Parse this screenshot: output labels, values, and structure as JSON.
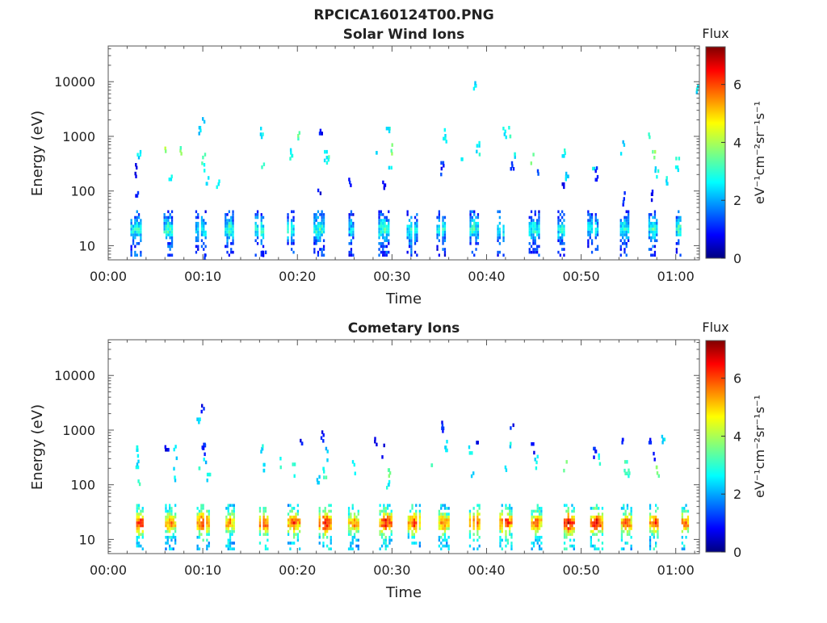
{
  "figure": {
    "title": "RPCICA160124T00.PNG"
  },
  "chart_data": [
    {
      "type": "heatmap",
      "title": "Solar Wind Ions",
      "xlabel": "Time",
      "ylabel": "Energy (eV)",
      "x_ticks": [
        "00:00",
        "00:10",
        "00:20",
        "00:30",
        "00:40",
        "00:50",
        "01:00"
      ],
      "x_tick_minutes": [
        0,
        10,
        20,
        30,
        40,
        50,
        60
      ],
      "xlim_minutes": [
        0,
        62.5
      ],
      "y_scale": "log",
      "ylim": [
        5.5,
        45000
      ],
      "y_ticks": [
        "10",
        "100",
        "1000",
        "10000"
      ],
      "y_tick_values": [
        10,
        100,
        1000,
        10000
      ],
      "colorbar": {
        "title": "Flux",
        "label": "eV⁻¹cm⁻²sr⁻¹s⁻¹",
        "range": [
          0,
          7.3
        ],
        "ticks": [
          "0",
          "2",
          "4",
          "6"
        ],
        "tick_values": [
          0,
          2,
          4,
          6
        ],
        "colormap": "jet"
      },
      "bursts": [
        {
          "t": 2.9,
          "w": 1.1,
          "v": 2.8
        },
        {
          "t": 6.3,
          "w": 0.9,
          "v": 2.9
        },
        {
          "t": 9.8,
          "w": 1.2,
          "v": 2.7
        },
        {
          "t": 12.8,
          "w": 1.0,
          "v": 2.8
        },
        {
          "t": 16.0,
          "w": 1.0,
          "v": 2.9
        },
        {
          "t": 19.2,
          "w": 1.0,
          "v": 2.7
        },
        {
          "t": 22.3,
          "w": 1.2,
          "v": 2.9
        },
        {
          "t": 25.7,
          "w": 0.6,
          "v": 2.4
        },
        {
          "t": 29.1,
          "w": 1.1,
          "v": 2.9
        },
        {
          "t": 32.1,
          "w": 1.1,
          "v": 2.8
        },
        {
          "t": 35.2,
          "w": 1.0,
          "v": 2.7
        },
        {
          "t": 38.7,
          "w": 1.0,
          "v": 2.8
        },
        {
          "t": 41.6,
          "w": 1.0,
          "v": 2.9
        },
        {
          "t": 45.0,
          "w": 1.1,
          "v": 2.8
        },
        {
          "t": 48.0,
          "w": 1.0,
          "v": 2.7
        },
        {
          "t": 51.2,
          "w": 1.1,
          "v": 2.6
        },
        {
          "t": 54.6,
          "w": 1.0,
          "v": 2.7
        },
        {
          "t": 57.6,
          "w": 1.0,
          "v": 2.8
        },
        {
          "t": 60.4,
          "w": 0.8,
          "v": 2.9
        }
      ],
      "scatter": [
        {
          "t": 2.8,
          "e": 230,
          "v": 0.9
        },
        {
          "t": 3.2,
          "e": 450,
          "v": 2.6
        },
        {
          "t": 3.0,
          "e": 90,
          "v": 1.2
        },
        {
          "t": 6.0,
          "e": 520,
          "v": 4.0
        },
        {
          "t": 6.5,
          "e": 180,
          "v": 2.8
        },
        {
          "t": 7.6,
          "e": 600,
          "v": 3.6
        },
        {
          "t": 9.5,
          "e": 1100,
          "v": 2.4
        },
        {
          "t": 9.9,
          "e": 2300,
          "v": 2.6
        },
        {
          "t": 10.0,
          "e": 400,
          "v": 3.4
        },
        {
          "t": 10.2,
          "e": 260,
          "v": 3.0
        },
        {
          "t": 10.4,
          "e": 150,
          "v": 2.5
        },
        {
          "t": 10.1,
          "e": 6.5,
          "v": 1.0
        },
        {
          "t": 11.5,
          "e": 130,
          "v": 2.7
        },
        {
          "t": 16.1,
          "e": 1200,
          "v": 2.6
        },
        {
          "t": 16.2,
          "e": 300,
          "v": 3.2
        },
        {
          "t": 16.4,
          "e": 6.5,
          "v": 1.1
        },
        {
          "t": 19.3,
          "e": 430,
          "v": 2.8
        },
        {
          "t": 20.1,
          "e": 1000,
          "v": 3.4
        },
        {
          "t": 22.4,
          "e": 1100,
          "v": 1.0
        },
        {
          "t": 22.9,
          "e": 450,
          "v": 2.6
        },
        {
          "t": 23.1,
          "e": 320,
          "v": 3.0
        },
        {
          "t": 22.2,
          "e": 100,
          "v": 0.8
        },
        {
          "t": 25.5,
          "e": 140,
          "v": 1.0
        },
        {
          "t": 28.2,
          "e": 550,
          "v": 2.6
        },
        {
          "t": 29.5,
          "e": 1200,
          "v": 2.8
        },
        {
          "t": 29.7,
          "e": 230,
          "v": 2.7
        },
        {
          "t": 29.1,
          "e": 110,
          "v": 0.9
        },
        {
          "t": 30.0,
          "e": 600,
          "v": 3.5
        },
        {
          "t": 35.5,
          "e": 1000,
          "v": 2.6
        },
        {
          "t": 35.2,
          "e": 250,
          "v": 1.2
        },
        {
          "t": 37.2,
          "e": 420,
          "v": 2.8
        },
        {
          "t": 38.6,
          "e": 8200,
          "v": 2.6
        },
        {
          "t": 39.0,
          "e": 580,
          "v": 2.7
        },
        {
          "t": 41.8,
          "e": 1200,
          "v": 2.6
        },
        {
          "t": 42.4,
          "e": 1100,
          "v": 3.0
        },
        {
          "t": 42.6,
          "e": 280,
          "v": 1.1
        },
        {
          "t": 42.9,
          "e": 520,
          "v": 2.7
        },
        {
          "t": 44.7,
          "e": 400,
          "v": 3.3
        },
        {
          "t": 45.3,
          "e": 200,
          "v": 1.3
        },
        {
          "t": 48.0,
          "e": 130,
          "v": 1.0
        },
        {
          "t": 48.4,
          "e": 180,
          "v": 2.6
        },
        {
          "t": 48.1,
          "e": 480,
          "v": 2.8
        },
        {
          "t": 51.2,
          "e": 250,
          "v": 2.7
        },
        {
          "t": 51.6,
          "e": 200,
          "v": 1.0
        },
        {
          "t": 54.3,
          "e": 600,
          "v": 2.6
        },
        {
          "t": 54.5,
          "e": 70,
          "v": 1.1
        },
        {
          "t": 57.2,
          "e": 1200,
          "v": 2.9
        },
        {
          "t": 57.6,
          "e": 450,
          "v": 3.6
        },
        {
          "t": 57.9,
          "e": 200,
          "v": 2.7
        },
        {
          "t": 57.5,
          "e": 85,
          "v": 0.8
        },
        {
          "t": 59.0,
          "e": 150,
          "v": 2.6
        },
        {
          "t": 62.1,
          "e": 6200,
          "v": 2.7
        },
        {
          "t": 60.1,
          "e": 300,
          "v": 2.8
        }
      ]
    },
    {
      "type": "heatmap",
      "title": "Cometary Ions",
      "xlabel": "Time",
      "ylabel": "Energy (eV)",
      "x_ticks": [
        "00:00",
        "00:10",
        "00:20",
        "00:30",
        "00:40",
        "00:50",
        "01:00"
      ],
      "x_tick_minutes": [
        0,
        10,
        20,
        30,
        40,
        50,
        60
      ],
      "xlim_minutes": [
        0,
        62.5
      ],
      "y_scale": "log",
      "ylim": [
        5.5,
        45000
      ],
      "y_ticks": [
        "10",
        "100",
        "1000",
        "10000"
      ],
      "y_tick_values": [
        10,
        100,
        1000,
        10000
      ],
      "colorbar": {
        "title": "Flux",
        "label": "eV⁻¹cm⁻²sr⁻¹s⁻¹",
        "range": [
          0,
          7.3
        ],
        "ticks": [
          "0",
          "2",
          "4",
          "6"
        ],
        "tick_values": [
          0,
          2,
          4,
          6
        ],
        "colormap": "jet"
      },
      "bursts": [
        {
          "t": 3.4,
          "w": 1.3,
          "v": 5.6
        },
        {
          "t": 6.6,
          "w": 1.2,
          "v": 5.2
        },
        {
          "t": 10.0,
          "w": 1.3,
          "v": 5.7
        },
        {
          "t": 12.8,
          "w": 1.2,
          "v": 5.0
        },
        {
          "t": 16.4,
          "w": 1.3,
          "v": 5.5
        },
        {
          "t": 19.6,
          "w": 1.3,
          "v": 5.4
        },
        {
          "t": 22.9,
          "w": 1.3,
          "v": 5.9
        },
        {
          "t": 25.9,
          "w": 1.1,
          "v": 5.0
        },
        {
          "t": 29.3,
          "w": 1.3,
          "v": 5.8
        },
        {
          "t": 32.3,
          "w": 1.3,
          "v": 5.5
        },
        {
          "t": 35.4,
          "w": 1.4,
          "v": 5.1
        },
        {
          "t": 38.8,
          "w": 1.3,
          "v": 5.4
        },
        {
          "t": 42.0,
          "w": 1.3,
          "v": 5.7
        },
        {
          "t": 45.3,
          "w": 1.2,
          "v": 5.3
        },
        {
          "t": 48.6,
          "w": 1.3,
          "v": 6.1
        },
        {
          "t": 51.6,
          "w": 1.3,
          "v": 5.9
        },
        {
          "t": 54.8,
          "w": 1.2,
          "v": 5.3
        },
        {
          "t": 57.8,
          "w": 1.2,
          "v": 5.5
        },
        {
          "t": 61.0,
          "w": 1.2,
          "v": 5.2
        }
      ],
      "scatter": [
        {
          "t": 3.1,
          "e": 420,
          "v": 2.8
        },
        {
          "t": 3.0,
          "e": 230,
          "v": 2.6
        },
        {
          "t": 3.2,
          "e": 100,
          "v": 3.3
        },
        {
          "t": 6.1,
          "e": 480,
          "v": 0.8
        },
        {
          "t": 7.0,
          "e": 380,
          "v": 2.6
        },
        {
          "t": 6.9,
          "e": 150,
          "v": 2.7
        },
        {
          "t": 9.5,
          "e": 1200,
          "v": 2.4
        },
        {
          "t": 9.9,
          "e": 2400,
          "v": 0.9
        },
        {
          "t": 10.1,
          "e": 450,
          "v": 1.0
        },
        {
          "t": 10.2,
          "e": 320,
          "v": 2.5
        },
        {
          "t": 10.0,
          "e": 600,
          "v": 1.2
        },
        {
          "t": 9.4,
          "e": 220,
          "v": 2.8
        },
        {
          "t": 10.5,
          "e": 150,
          "v": 2.6
        },
        {
          "t": 16.1,
          "e": 500,
          "v": 2.6
        },
        {
          "t": 16.5,
          "e": 200,
          "v": 2.7
        },
        {
          "t": 18.2,
          "e": 230,
          "v": 2.8
        },
        {
          "t": 19.5,
          "e": 180,
          "v": 3.0
        },
        {
          "t": 20.3,
          "e": 490,
          "v": 1.0
        },
        {
          "t": 22.6,
          "e": 700,
          "v": 0.9
        },
        {
          "t": 23.0,
          "e": 350,
          "v": 2.4
        },
        {
          "t": 22.8,
          "e": 150,
          "v": 3.2
        },
        {
          "t": 22.1,
          "e": 120,
          "v": 2.7
        },
        {
          "t": 25.9,
          "e": 200,
          "v": 2.6
        },
        {
          "t": 28.2,
          "e": 600,
          "v": 1.0
        },
        {
          "t": 29.0,
          "e": 400,
          "v": 0.9
        },
        {
          "t": 29.7,
          "e": 160,
          "v": 3.4
        },
        {
          "t": 29.5,
          "e": 110,
          "v": 2.8
        },
        {
          "t": 34.2,
          "e": 250,
          "v": 3.1
        },
        {
          "t": 35.2,
          "e": 1050,
          "v": 1.0
        },
        {
          "t": 35.6,
          "e": 470,
          "v": 2.6
        },
        {
          "t": 38.2,
          "e": 420,
          "v": 2.7
        },
        {
          "t": 38.9,
          "e": 650,
          "v": 1.0
        },
        {
          "t": 38.5,
          "e": 140,
          "v": 2.6
        },
        {
          "t": 42.3,
          "e": 550,
          "v": 2.6
        },
        {
          "t": 42.6,
          "e": 1200,
          "v": 1.0
        },
        {
          "t": 42.0,
          "e": 180,
          "v": 2.8
        },
        {
          "t": 44.8,
          "e": 480,
          "v": 0.9
        },
        {
          "t": 45.2,
          "e": 250,
          "v": 2.7
        },
        {
          "t": 48.2,
          "e": 200,
          "v": 3.6
        },
        {
          "t": 51.4,
          "e": 350,
          "v": 1.0
        },
        {
          "t": 51.8,
          "e": 300,
          "v": 2.8
        },
        {
          "t": 54.3,
          "e": 650,
          "v": 1.0
        },
        {
          "t": 54.6,
          "e": 200,
          "v": 3.2
        },
        {
          "t": 57.2,
          "e": 650,
          "v": 1.0
        },
        {
          "t": 57.5,
          "e": 320,
          "v": 0.9
        },
        {
          "t": 58.0,
          "e": 180,
          "v": 3.4
        },
        {
          "t": 58.6,
          "e": 580,
          "v": 2.6
        },
        {
          "t": 55.0,
          "e": 140,
          "v": 3.3
        }
      ]
    }
  ]
}
